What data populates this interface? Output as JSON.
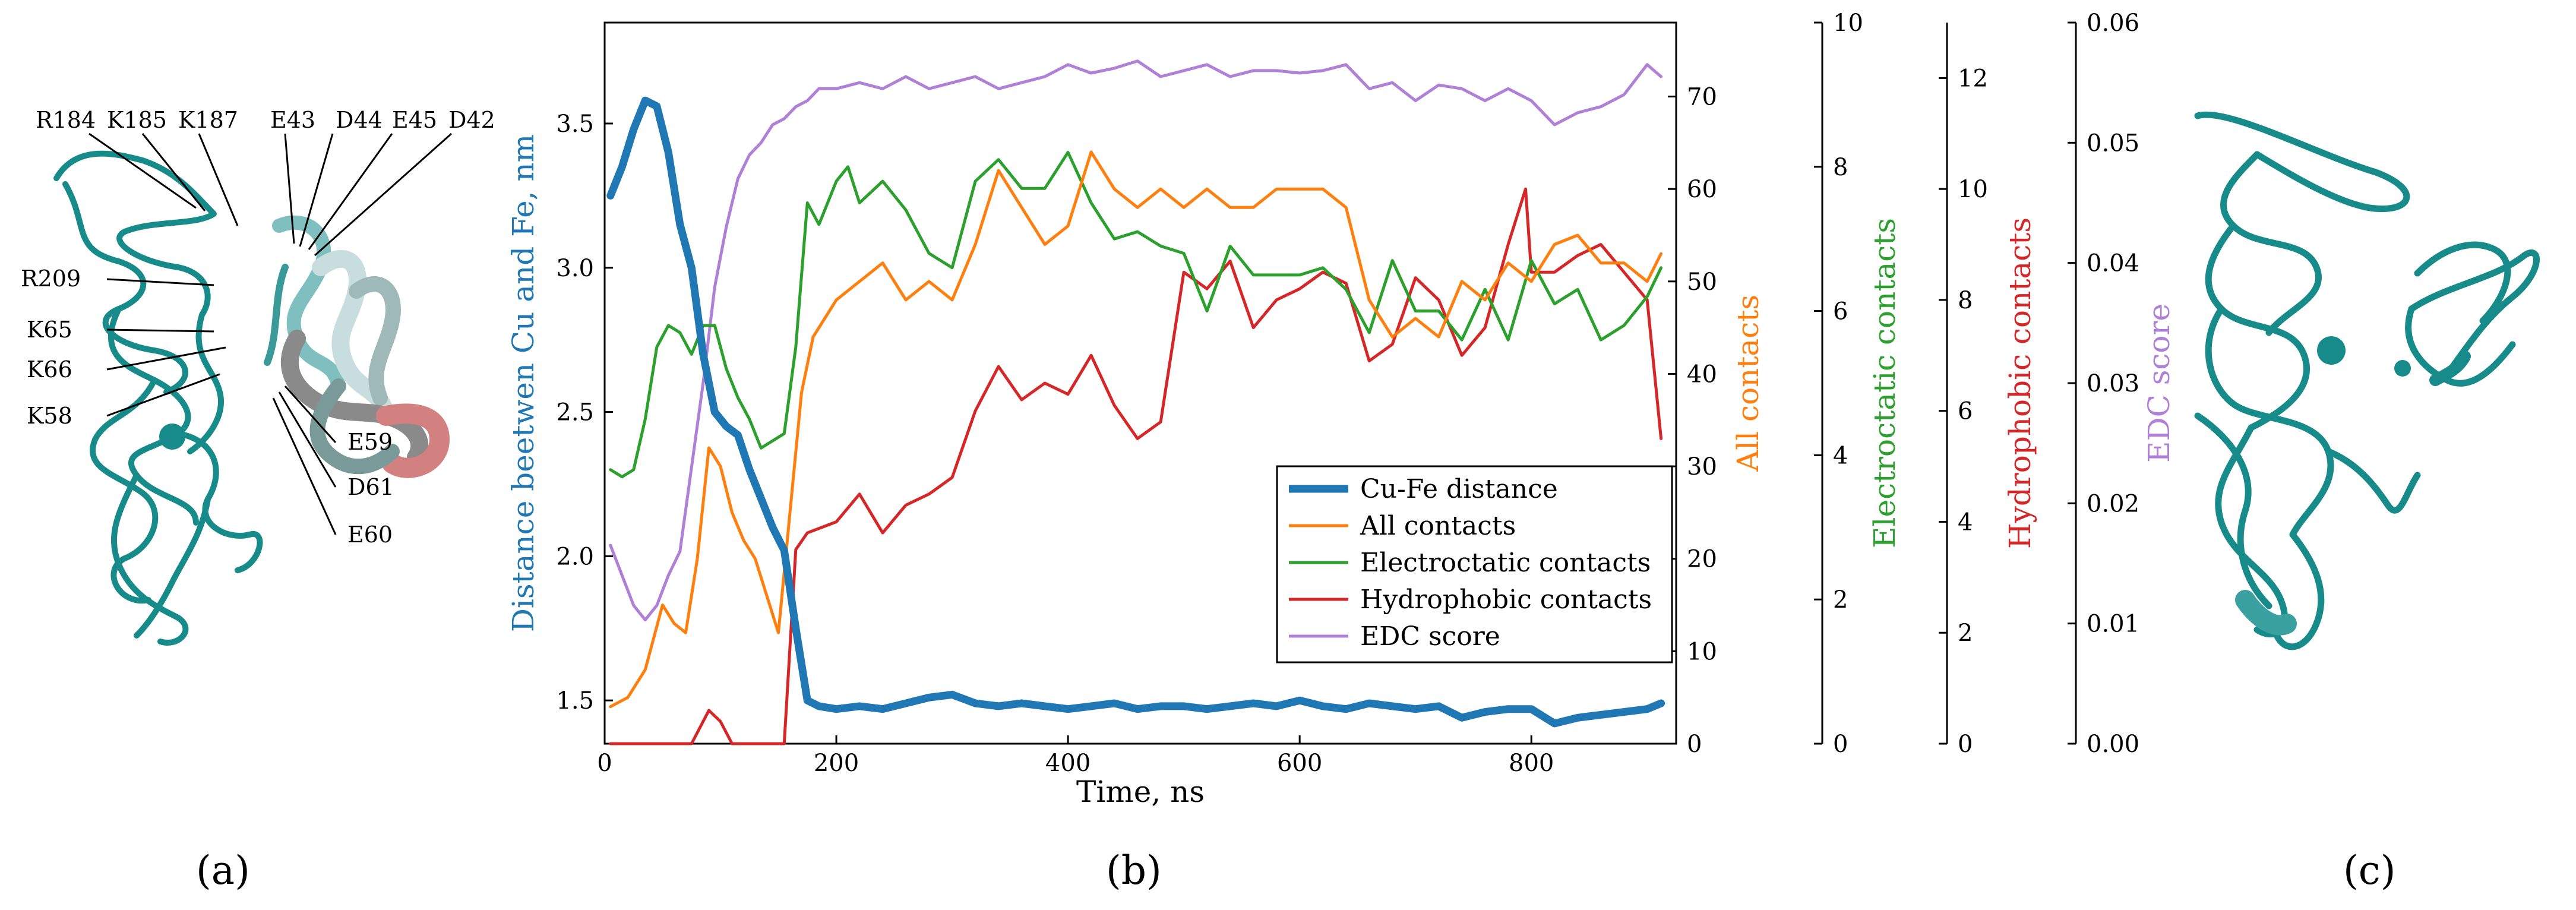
{
  "panel_labels": [
    "(a)",
    "(b)",
    "(c)"
  ],
  "structure_annotations": [
    "R184",
    "K185",
    "K187",
    "E43",
    "D44",
    "E45",
    "D42",
    "R209",
    "K65",
    "K66",
    "K58",
    "E59",
    "D61",
    "E60"
  ],
  "colors": {
    "cu_fe": "#1f77b4",
    "all": "#ff7f0e",
    "electro": "#2ca02c",
    "hydro": "#d62728",
    "edc": "#b07fd6",
    "protein": "#178a8a"
  },
  "chart_data": {
    "type": "line",
    "xlabel": "Time, ns",
    "xlim": [
      0,
      925
    ],
    "xticks": [
      "0",
      "200",
      "400",
      "600",
      "800"
    ],
    "axes": {
      "distance": {
        "label": "Distance beetwen Cu and Fe, nm",
        "lim": [
          1.35,
          3.85
        ],
        "ticks": [
          "1.5",
          "2.0",
          "2.5",
          "3.0",
          "3.5"
        ]
      },
      "all_contacts": {
        "label": "All contacts",
        "lim": [
          0,
          78
        ],
        "ticks": [
          "0",
          "10",
          "20",
          "30",
          "40",
          "50",
          "60",
          "70"
        ]
      },
      "electrostatic": {
        "label": "Electroctatic contacts",
        "lim": [
          0,
          10
        ],
        "ticks": [
          "0",
          "2",
          "4",
          "6",
          "8",
          "10"
        ]
      },
      "hydrophobic": {
        "label": "Hydrophobic contacts",
        "lim": [
          0,
          13
        ],
        "ticks": [
          "0",
          "2",
          "4",
          "6",
          "8",
          "10",
          "12"
        ]
      },
      "edc": {
        "label": "EDC score",
        "lim": [
          0,
          0.06
        ],
        "ticks": [
          "0.00",
          "0.01",
          "0.02",
          "0.03",
          "0.04",
          "0.05",
          "0.06"
        ]
      }
    },
    "legend": {
      "position": "lower-right",
      "entries": [
        "Cu-Fe distance",
        "All contacts",
        "Electroctatic contacts",
        "Hydrophobic contacts",
        "EDC score"
      ]
    },
    "series": [
      {
        "name": "Cu-Fe distance",
        "axis": "distance",
        "color": "#1f77b4",
        "x": [
          5,
          15,
          25,
          35,
          45,
          55,
          65,
          75,
          85,
          95,
          105,
          115,
          125,
          135,
          145,
          155,
          165,
          175,
          185,
          200,
          220,
          240,
          260,
          280,
          300,
          320,
          340,
          360,
          380,
          400,
          420,
          440,
          460,
          480,
          500,
          520,
          540,
          560,
          580,
          600,
          620,
          640,
          660,
          680,
          700,
          720,
          740,
          760,
          780,
          800,
          820,
          840,
          860,
          880,
          900,
          912
        ],
        "values": [
          3.25,
          3.35,
          3.48,
          3.58,
          3.56,
          3.4,
          3.15,
          3.0,
          2.7,
          2.5,
          2.45,
          2.42,
          2.3,
          2.2,
          2.1,
          2.02,
          1.75,
          1.5,
          1.48,
          1.47,
          1.48,
          1.47,
          1.49,
          1.51,
          1.52,
          1.49,
          1.48,
          1.49,
          1.48,
          1.47,
          1.48,
          1.49,
          1.47,
          1.48,
          1.48,
          1.47,
          1.48,
          1.49,
          1.48,
          1.5,
          1.48,
          1.47,
          1.49,
          1.48,
          1.47,
          1.48,
          1.44,
          1.46,
          1.47,
          1.47,
          1.42,
          1.44,
          1.45,
          1.46,
          1.47,
          1.49
        ]
      },
      {
        "name": "All contacts",
        "axis": "all_contacts",
        "color": "#ff7f0e",
        "x": [
          5,
          20,
          35,
          50,
          60,
          70,
          80,
          90,
          100,
          110,
          120,
          130,
          140,
          150,
          160,
          170,
          180,
          200,
          220,
          240,
          260,
          280,
          300,
          320,
          340,
          360,
          380,
          400,
          420,
          440,
          460,
          480,
          500,
          520,
          540,
          560,
          580,
          600,
          620,
          640,
          660,
          680,
          700,
          720,
          740,
          760,
          780,
          800,
          820,
          840,
          860,
          880,
          900,
          912
        ],
        "values": [
          4,
          5,
          8,
          15,
          13,
          12,
          20,
          32,
          30,
          25,
          22,
          20,
          16,
          12,
          25,
          38,
          44,
          48,
          50,
          52,
          48,
          50,
          48,
          54,
          62,
          58,
          54,
          56,
          64,
          60,
          58,
          60,
          58,
          60,
          58,
          58,
          60,
          60,
          60,
          58,
          48,
          44,
          46,
          44,
          50,
          48,
          52,
          50,
          54,
          55,
          52,
          52,
          50,
          53
        ]
      },
      {
        "name": "Electroctatic contacts",
        "axis": "electrostatic",
        "color": "#2ca02c",
        "x": [
          5,
          15,
          25,
          35,
          45,
          55,
          65,
          75,
          85,
          95,
          105,
          115,
          125,
          135,
          145,
          155,
          165,
          175,
          185,
          200,
          210,
          220,
          240,
          260,
          280,
          300,
          320,
          340,
          360,
          380,
          400,
          420,
          440,
          460,
          480,
          500,
          520,
          540,
          560,
          580,
          600,
          620,
          640,
          660,
          680,
          700,
          720,
          740,
          760,
          780,
          800,
          820,
          840,
          860,
          880,
          900,
          912
        ],
        "values": [
          3.8,
          3.7,
          3.8,
          4.5,
          5.5,
          5.8,
          5.7,
          5.4,
          5.8,
          5.8,
          5.2,
          4.8,
          4.5,
          4.1,
          4.2,
          4.3,
          5.5,
          7.5,
          7.2,
          7.8,
          8.0,
          7.5,
          7.8,
          7.4,
          6.8,
          6.6,
          7.8,
          8.1,
          7.7,
          7.7,
          8.2,
          7.5,
          7.0,
          7.1,
          6.9,
          6.8,
          6.0,
          6.9,
          6.5,
          6.5,
          6.5,
          6.6,
          6.3,
          5.7,
          6.7,
          6.0,
          6.0,
          5.6,
          6.3,
          5.6,
          6.7,
          6.1,
          6.3,
          5.6,
          5.8,
          6.2,
          6.6
        ]
      },
      {
        "name": "Hydrophobic contacts",
        "axis": "hydrophobic",
        "color": "#d62728",
        "x": [
          5,
          40,
          75,
          90,
          100,
          110,
          140,
          155,
          165,
          175,
          200,
          220,
          240,
          260,
          280,
          300,
          320,
          340,
          360,
          380,
          400,
          420,
          440,
          460,
          480,
          500,
          520,
          540,
          560,
          580,
          600,
          620,
          640,
          660,
          680,
          700,
          720,
          740,
          760,
          780,
          795,
          800,
          820,
          840,
          860,
          880,
          900,
          912
        ],
        "values": [
          0,
          0,
          0,
          0.6,
          0.4,
          0,
          0,
          0,
          3.5,
          3.8,
          4.0,
          4.5,
          3.8,
          4.3,
          4.5,
          4.8,
          6.0,
          6.8,
          6.2,
          6.5,
          6.3,
          7.0,
          6.1,
          5.5,
          5.8,
          8.5,
          8.2,
          8.7,
          7.5,
          8.0,
          8.2,
          8.5,
          8.3,
          6.9,
          7.2,
          8.4,
          8.0,
          7.0,
          7.5,
          9.0,
          10.0,
          8.5,
          8.5,
          8.8,
          9.0,
          8.5,
          8.0,
          5.5
        ]
      },
      {
        "name": "EDC score",
        "axis": "edc",
        "color": "#b07fd6",
        "x": [
          5,
          15,
          25,
          35,
          45,
          55,
          65,
          75,
          85,
          95,
          105,
          115,
          125,
          135,
          145,
          155,
          165,
          175,
          185,
          200,
          220,
          240,
          260,
          280,
          300,
          320,
          340,
          360,
          380,
          400,
          420,
          440,
          460,
          480,
          500,
          520,
          540,
          560,
          580,
          600,
          620,
          640,
          660,
          680,
          700,
          720,
          740,
          760,
          780,
          800,
          820,
          840,
          860,
          880,
          900,
          912
        ],
        "values": [
          0.0165,
          0.014,
          0.0115,
          0.0103,
          0.0115,
          0.014,
          0.016,
          0.023,
          0.03,
          0.038,
          0.043,
          0.047,
          0.049,
          0.05,
          0.0515,
          0.052,
          0.053,
          0.0535,
          0.0545,
          0.0545,
          0.055,
          0.0545,
          0.0555,
          0.0545,
          0.055,
          0.0555,
          0.0545,
          0.055,
          0.0555,
          0.0565,
          0.0558,
          0.0562,
          0.0568,
          0.0555,
          0.056,
          0.0565,
          0.0555,
          0.056,
          0.056,
          0.0558,
          0.056,
          0.0565,
          0.0545,
          0.055,
          0.0535,
          0.0548,
          0.0545,
          0.0535,
          0.0545,
          0.0535,
          0.0515,
          0.0525,
          0.053,
          0.054,
          0.0565,
          0.0555
        ]
      }
    ]
  }
}
